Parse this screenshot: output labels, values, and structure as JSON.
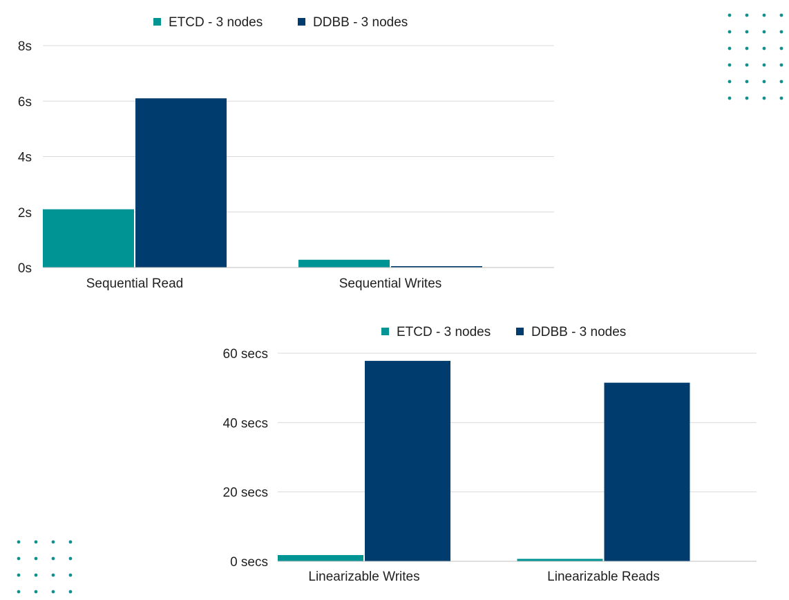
{
  "chart_data": [
    {
      "type": "bar",
      "title": "",
      "xlabel": "",
      "ylabel": "",
      "categories": [
        "Sequential Read",
        "Sequential Writes"
      ],
      "series": [
        {
          "name": "ETCD - 3 nodes",
          "values": [
            2.1,
            0.28
          ]
        },
        {
          "name": "DDBB - 3 nodes",
          "values": [
            6.1,
            0.05
          ]
        }
      ],
      "ylim": [
        0,
        8
      ],
      "y_ticks": [
        0,
        2,
        4,
        6,
        8
      ],
      "y_tick_labels": [
        "0s",
        "2s",
        "4s",
        "6s",
        "8s"
      ],
      "grid": true,
      "legend_position": "top-center"
    },
    {
      "type": "bar",
      "title": "",
      "xlabel": "",
      "ylabel": "",
      "categories": [
        "Linearizable Writes",
        "Linearizable Reads"
      ],
      "series": [
        {
          "name": "ETCD - 3 nodes",
          "values": [
            1.8,
            0.7
          ]
        },
        {
          "name": "DDBB - 3 nodes",
          "values": [
            57.8,
            51.5
          ]
        }
      ],
      "ylim": [
        0,
        60
      ],
      "y_ticks": [
        0,
        20,
        40,
        60
      ],
      "y_tick_labels": [
        "0 secs",
        "20 secs",
        "40 secs",
        "60 secs"
      ],
      "grid": true,
      "legend_position": "top-center"
    }
  ],
  "colors": {
    "etcd": "#009494",
    "ddbb": "#003d6e",
    "dots": "#12908e"
  }
}
